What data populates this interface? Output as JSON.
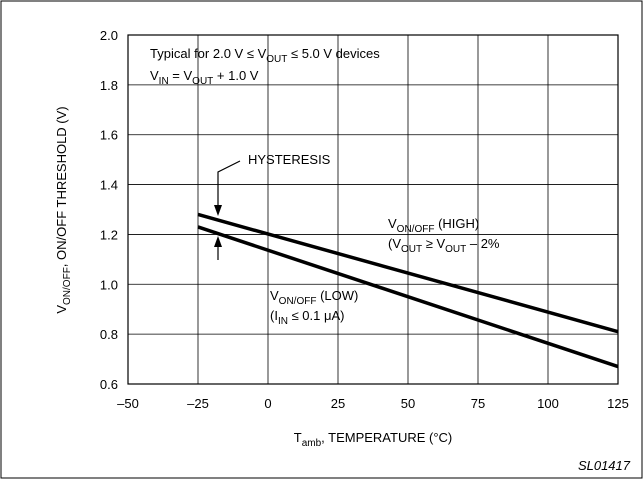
{
  "chart_data": {
    "type": "line",
    "xlim": [
      -50,
      125
    ],
    "xticks": [
      {
        "value": -50,
        "label": "–50"
      },
      {
        "value": -25,
        "label": "–25"
      },
      0,
      25,
      50,
      75,
      100,
      125
    ],
    "ylim": [
      0.6,
      2.0
    ],
    "yticks": [
      {
        "value": 0.6,
        "label": "0.6"
      },
      {
        "value": 0.8,
        "label": "0.8"
      },
      {
        "value": 1.0,
        "label": "1.0"
      },
      {
        "value": 1.2,
        "label": "1.2"
      },
      {
        "value": 1.4,
        "label": "1.4"
      },
      {
        "value": 1.6,
        "label": "1.6"
      },
      {
        "value": 1.8,
        "label": "1.8"
      },
      {
        "value": 2.0,
        "label": "2.0"
      }
    ],
    "grid": true,
    "x": [
      -25,
      125
    ],
    "series": [
      {
        "name": [
          {
            "text": "V"
          },
          {
            "text": "ON/OFF",
            "sub": true
          },
          {
            "text": " (HIGH)"
          }
        ],
        "color": "#000000",
        "values": [
          1.28,
          0.81
        ]
      },
      {
        "name": [
          {
            "text": "V"
          },
          {
            "text": "ON/OFF",
            "sub": true
          },
          {
            "text": " (LOW)"
          }
        ],
        "color": "#000000",
        "values": [
          1.23,
          0.67
        ]
      }
    ],
    "ylabel": [
      {
        "text": "V"
      },
      {
        "text": "ON/OFF",
        "sub": true
      },
      {
        "text": ", ON/OFF THRESHOLD (V)"
      }
    ],
    "xlabel": [
      {
        "text": "T"
      },
      {
        "text": "amb",
        "sub": true
      },
      {
        "text": ", TEMPERATURE (°C)"
      }
    ],
    "annotations": [
      [
        {
          "text": "Typical for 2.0 V ≤ V"
        },
        {
          "text": "OUT",
          "sub": true
        },
        {
          "text": " ≤ 5.0 V devices"
        }
      ],
      [
        {
          "text": "V"
        },
        {
          "text": "IN",
          "sub": true
        },
        {
          "text": " = V"
        },
        {
          "text": "OUT",
          "sub": true
        },
        {
          "text": " + 1.0 V"
        }
      ],
      [
        {
          "text": "HYSTERESIS"
        }
      ],
      [
        {
          "text": "(V"
        },
        {
          "text": "OUT",
          "sub": true
        },
        {
          "text": " ≥ V"
        },
        {
          "text": "OUT",
          "sub": true
        },
        {
          "text": " – 2%"
        }
      ],
      [
        {
          "text": "(I"
        },
        {
          "text": "IN",
          "sub": true
        },
        {
          "text": " ≤ 0.1 μA)"
        }
      ]
    ],
    "footer": "SL01417"
  }
}
